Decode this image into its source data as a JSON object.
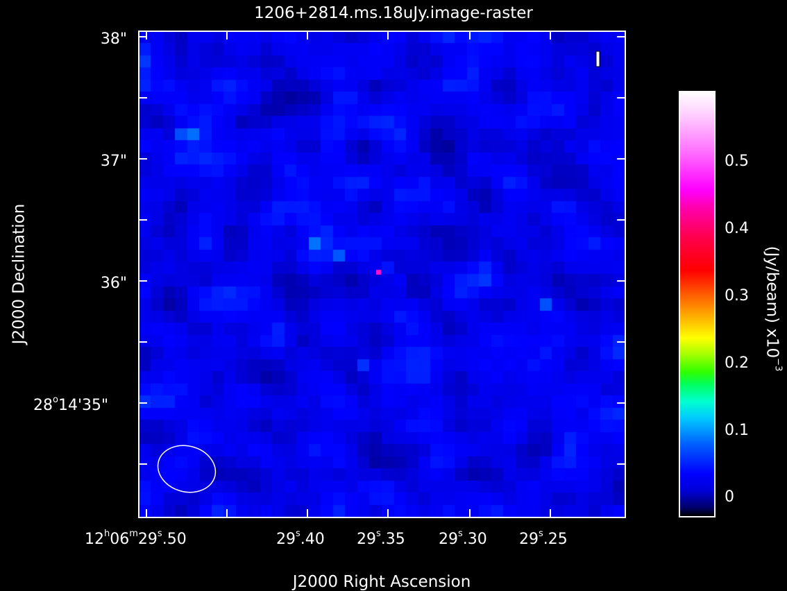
{
  "title": "1206+2814.ms.18uJy.image-raster",
  "axes": {
    "x_label": "J2000 Right Ascension",
    "y_label": "J2000 Declination",
    "x_tick_first": {
      "hours": "12",
      "h_unit": "h",
      "minutes": "06",
      "m_unit": "m",
      "seconds": "29",
      "s_unit": "s",
      "frac": ".50"
    },
    "x_ticks": [
      {
        "sec": "29",
        "unit": "s",
        "frac": ".40"
      },
      {
        "sec": "29",
        "unit": "s",
        "frac": ".35"
      },
      {
        "sec": "29",
        "unit": "s",
        "frac": ".30"
      },
      {
        "sec": "29",
        "unit": "s",
        "frac": ".25"
      }
    ],
    "y_ticks": [
      "38\"",
      "37\"",
      "36\""
    ],
    "y_tick_last": {
      "deg": "28",
      "deg_unit": "o",
      "rest": "14'35\""
    }
  },
  "colorbar": {
    "unit_label": "(Jy/beam)  x10",
    "unit_exponent": "−3",
    "ticks": [
      "0.5",
      "0.4",
      "0.3",
      "0.2",
      "0.1",
      "0"
    ],
    "range": [
      -0.03,
      0.59
    ],
    "colormap": "rainbow"
  },
  "image": {
    "peak_value_mJy": 0.38,
    "background_level_mJy": 0.0,
    "beam_shape": "ellipse"
  }
}
